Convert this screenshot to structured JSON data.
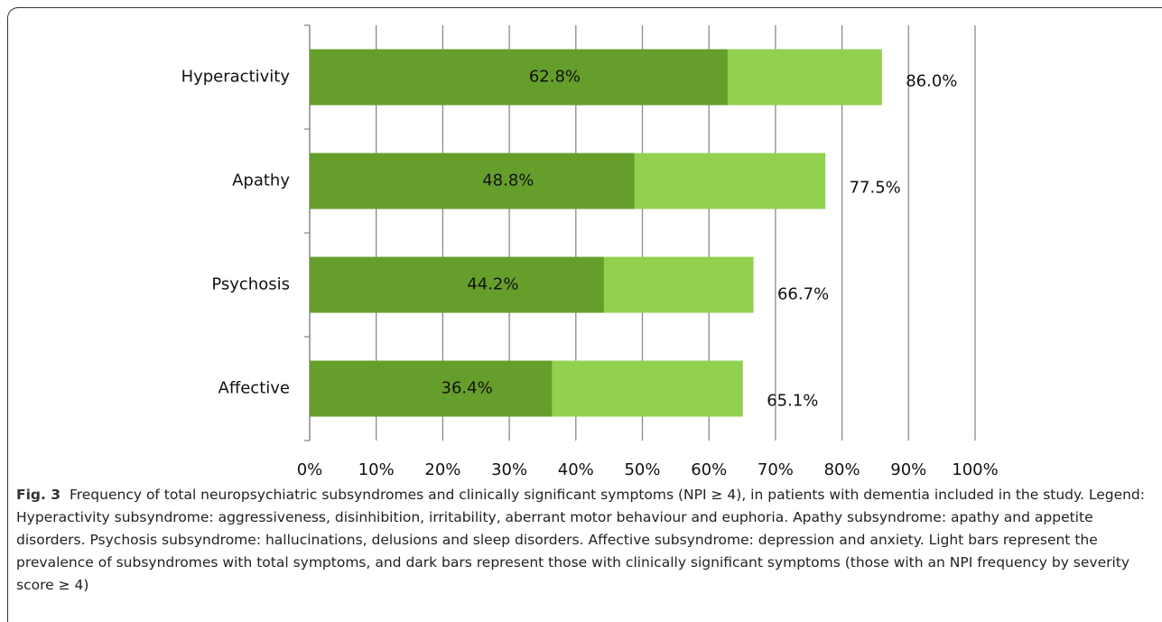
{
  "chart_data": {
    "type": "overlapping-bar",
    "categories": [
      "Hyperactivity",
      "Apathy",
      "Psychosis",
      "Affective"
    ],
    "series": [
      {
        "color": "#92d050",
        "values": [
          86.0,
          77.5,
          66.7,
          65.1
        ],
        "value_labels": [
          "86.0%",
          "77.5%",
          "66.7%",
          "65.1%"
        ]
      },
      {
        "color": "#669e2c",
        "values": [
          62.8,
          48.8,
          44.2,
          36.4
        ],
        "value_labels": [
          "62.8%",
          "48.8%",
          "44.2%",
          "36.4%"
        ]
      }
    ],
    "xlim": [
      0,
      100
    ],
    "xticks": [
      {
        "value": 0,
        "label": "0%"
      },
      {
        "value": 10,
        "label": "10%"
      },
      {
        "value": 20,
        "label": "20%"
      },
      {
        "value": 30,
        "label": "30%"
      },
      {
        "value": 40,
        "label": "40%"
      },
      {
        "value": 50,
        "label": "50%"
      },
      {
        "value": 60,
        "label": "60%"
      },
      {
        "value": 70,
        "label": "70%"
      },
      {
        "value": 80,
        "label": "80%"
      },
      {
        "value": 90,
        "label": "90%"
      },
      {
        "value": 100,
        "label": "100%"
      }
    ],
    "grid": true,
    "figure_label": "Fig. 3",
    "caption": "Frequency of total neuropsychiatric subsyndromes and clinically significant symptoms (NPI ≥ 4), in patients with dementia included in the study. Legend: Hyperactivity subsyndrome: aggressiveness, disinhibition, irritability, aberrant motor behaviour and euphoria. Apathy subsyndrome: apathy and appetite disorders. Psychosis subsyndrome: hallucinations, delusions and sleep disorders. Affective subsyndrome: depression and anxiety. Light bars represent the prevalence of subsyndromes with total symptoms, and dark bars represent those with clinically significant symptoms (those with an NPI frequency by severity score ≥ 4)"
  }
}
